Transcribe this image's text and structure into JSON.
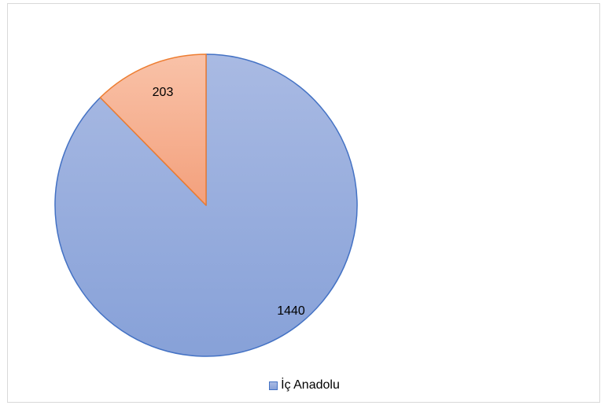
{
  "chart_data": {
    "type": "pie",
    "title": "",
    "slices": [
      {
        "label": "İç Anadolu",
        "value": 1440,
        "color_top": "#a9bae3",
        "color_bottom": "#87a1d8",
        "stroke": "#4472c4"
      },
      {
        "label": "",
        "value": 203,
        "color_top": "#f9c2a8",
        "color_bottom": "#f3a07c",
        "stroke": "#ed7d31"
      }
    ],
    "data_labels": [
      "1440",
      "203"
    ],
    "legend": {
      "position": "bottom",
      "entries": [
        "İç Anadolu"
      ]
    }
  }
}
